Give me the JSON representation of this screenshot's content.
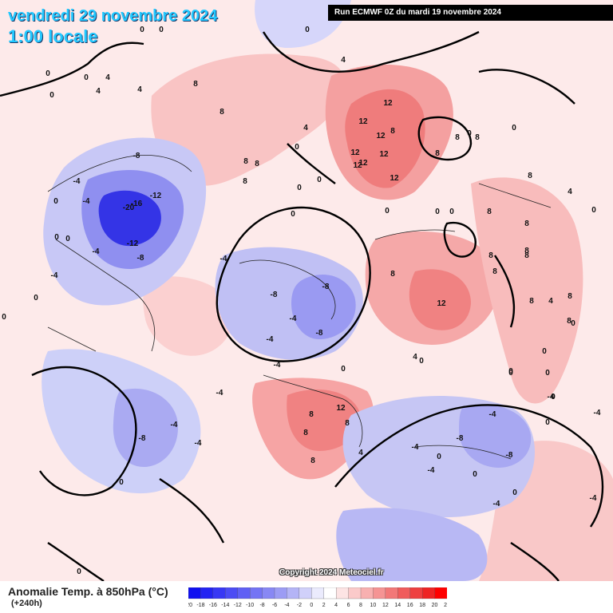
{
  "header": {
    "valid_date": "vendredi 29 novembre 2024",
    "local_time": "1:00 locale"
  },
  "run_info": "Run ECMWF 0Z du mardi 19 novembre 2024",
  "copyright": "Copyright 2024 Meteociel.fr",
  "legend": {
    "title": "Anomalie Temp. à 850hPa (°C)",
    "lead_time": "(+240h)",
    "ticks": [
      "-20",
      "-18",
      "-16",
      "-14",
      "-12",
      "-10",
      "-8",
      "-6",
      "-4",
      "-2",
      "0",
      "2",
      "4",
      "6",
      "8",
      "10",
      "12",
      "14",
      "16",
      "18",
      "20",
      "22"
    ],
    "colors": [
      "#1010f0",
      "#2424f2",
      "#3838f4",
      "#4c4cf4",
      "#6060f4",
      "#7474f4",
      "#8888f4",
      "#9c9cf4",
      "#b4b4f6",
      "#d0d0fa",
      "#ebebfd",
      "#ffffff",
      "#fde4e4",
      "#fbcaca",
      "#f8b0b0",
      "#f59494",
      "#f27878",
      "#f05c5c",
      "#ee4040",
      "#ee2424",
      "#ff0000"
    ]
  },
  "map": {
    "contour_labels": [
      "0",
      "0",
      "0",
      "0",
      "4",
      "4",
      "4",
      "0",
      "0",
      "4",
      "8",
      "8",
      "0",
      "4",
      "8",
      "8",
      "8",
      "0",
      "0",
      "12",
      "12",
      "8",
      "12",
      "12",
      "12",
      "12",
      "12",
      "12",
      "8",
      "8",
      "8",
      "0",
      "0",
      "-8",
      "-12",
      "-16",
      "-20",
      "-12",
      "-8",
      "-4",
      "-4",
      "-4",
      "-4",
      "0",
      "0",
      "0",
      "0",
      "0",
      "-4",
      "-8",
      "-4",
      "-8",
      "-8",
      "-4",
      "0",
      "-4",
      "-4",
      "-8",
      "-4",
      "-4",
      "0",
      "8",
      "12",
      "8",
      "8",
      "8",
      "8",
      "4",
      "0",
      "0",
      "0",
      "0",
      "8",
      "8",
      "8",
      "8",
      "8",
      "8",
      "0",
      "-4",
      "-8",
      "-4",
      "-8",
      "-4",
      "0",
      "0",
      "0",
      "0",
      "-4",
      "-4",
      "-4",
      "-4",
      "0",
      "0",
      "8",
      "12",
      "8",
      "8",
      "8",
      "4",
      "0",
      "0",
      "0",
      "0",
      "0",
      "4",
      "0",
      "4"
    ]
  }
}
